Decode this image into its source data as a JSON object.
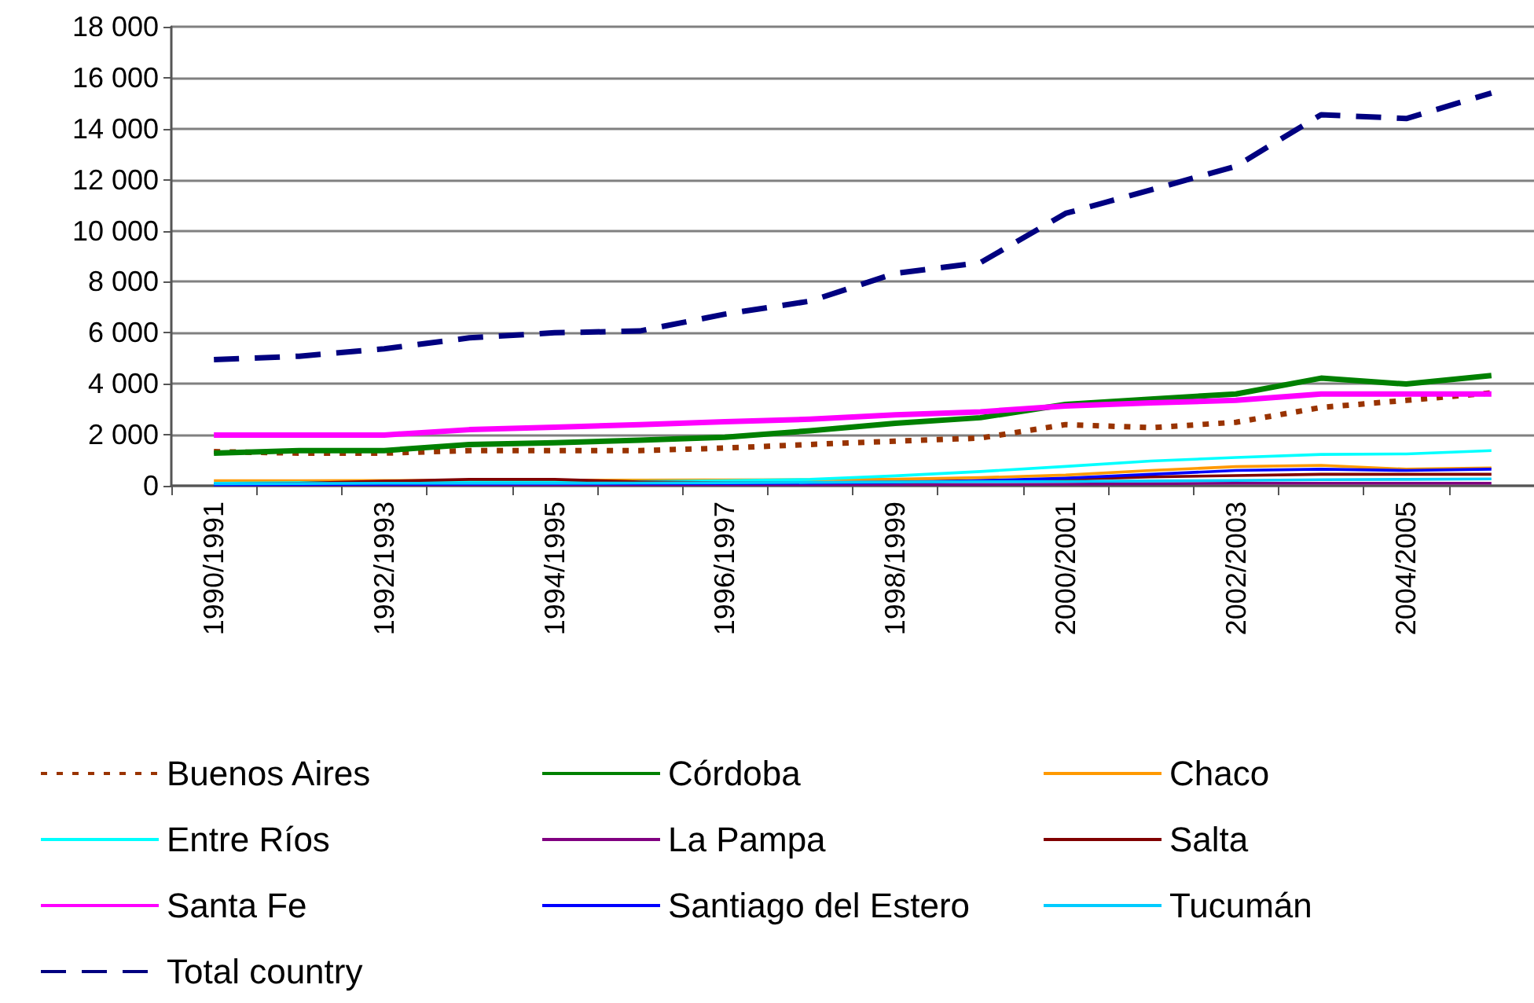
{
  "chart_data": {
    "type": "line",
    "categories": [
      "1990/1991",
      null,
      "1992/1993",
      null,
      "1994/1995",
      null,
      "1996/1997",
      null,
      "1998/1999",
      null,
      "2000/2001",
      null,
      "2002/2003",
      null,
      "2004/2005",
      null
    ],
    "series": [
      {
        "name": "Buenos Aires",
        "color": "#993300",
        "line_style": "dotted",
        "values": [
          1340,
          1280,
          1280,
          1380,
          1380,
          1380,
          1480,
          1620,
          1750,
          1870,
          2400,
          2280,
          2490,
          3070,
          3350,
          3640
        ]
      },
      {
        "name": "Córdoba",
        "color": "#008000",
        "values": [
          1280,
          1380,
          1380,
          1620,
          1690,
          1790,
          1900,
          2160,
          2450,
          2670,
          3190,
          3400,
          3600,
          4220,
          3990,
          4320
        ]
      },
      {
        "name": "Chaco",
        "color": "#ff9900",
        "values": [
          200,
          200,
          210,
          210,
          220,
          220,
          230,
          240,
          260,
          320,
          420,
          600,
          750,
          800,
          650,
          700
        ]
      },
      {
        "name": "Entre Ríos",
        "color": "#00ffff",
        "values": [
          100,
          120,
          130,
          150,
          150,
          170,
          200,
          250,
          390,
          560,
          760,
          970,
          1110,
          1230,
          1250,
          1380
        ]
      },
      {
        "name": "La Pampa",
        "color": "#800080",
        "values": [
          40,
          40,
          40,
          40,
          40,
          40,
          40,
          40,
          50,
          50,
          60,
          80,
          100,
          100,
          100,
          100
        ]
      },
      {
        "name": "Salta",
        "color": "#800000",
        "values": [
          60,
          100,
          180,
          250,
          250,
          150,
          120,
          120,
          150,
          200,
          250,
          350,
          400,
          450,
          450,
          450
        ]
      },
      {
        "name": "Santa Fe",
        "color": "#ff00ff",
        "values": [
          1990,
          1990,
          1990,
          2200,
          2300,
          2400,
          2510,
          2610,
          2780,
          2900,
          3130,
          3250,
          3350,
          3600,
          3600,
          3600
        ]
      },
      {
        "name": "Santiago del Estero",
        "color": "#0000ff",
        "values": [
          40,
          50,
          60,
          70,
          80,
          80,
          90,
          100,
          130,
          200,
          300,
          450,
          600,
          650,
          600,
          650
        ]
      },
      {
        "name": "Tucumán",
        "color": "#00ccff",
        "values": [
          80,
          90,
          100,
          100,
          100,
          110,
          120,
          130,
          150,
          160,
          170,
          190,
          210,
          240,
          250,
          270
        ]
      },
      {
        "name": "Total country",
        "color": "#000080",
        "line_style": "dashed",
        "values": [
          4950,
          5080,
          5370,
          5800,
          6000,
          6070,
          6730,
          7240,
          8330,
          8750,
          10680,
          11600,
          12530,
          14550,
          14400,
          15400
        ]
      }
    ],
    "ylim": [
      0,
      18000
    ],
    "yticks": [
      {
        "value": 0,
        "label": "0"
      },
      {
        "value": 2000,
        "label": "2 000"
      },
      {
        "value": 4000,
        "label": "4 000"
      },
      {
        "value": 6000,
        "label": "6 000"
      },
      {
        "value": 8000,
        "label": "8 000"
      },
      {
        "value": 10000,
        "label": "10 000"
      },
      {
        "value": 12000,
        "label": "12 000"
      },
      {
        "value": 14000,
        "label": "14 000"
      },
      {
        "value": 16000,
        "label": "16 000"
      },
      {
        "value": 18000,
        "label": "18 000"
      }
    ],
    "grid": "y",
    "legend": "bottom",
    "marker": "none"
  }
}
